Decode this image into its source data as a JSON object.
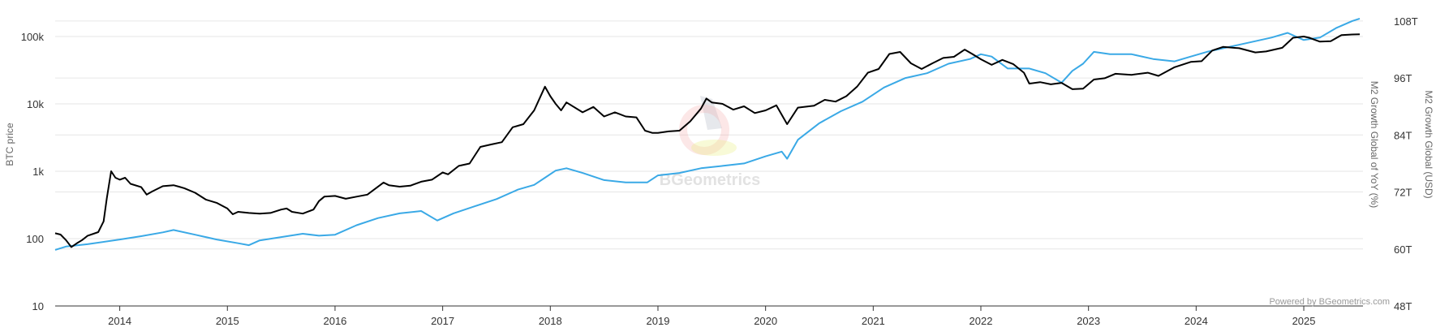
{
  "chart_data": {
    "type": "line",
    "title": "",
    "x_ticks": [
      "2014",
      "2015",
      "2016",
      "2017",
      "2018",
      "2019",
      "2020",
      "2021",
      "2022",
      "2023",
      "2024",
      "2025"
    ],
    "x_range": [
      2013.4,
      2025.55
    ],
    "y_left": {
      "label": "BTC price",
      "scale": "log",
      "range": [
        10,
        200000
      ],
      "ticks": [
        {
          "value": 10,
          "label": "10"
        },
        {
          "value": 100,
          "label": "100"
        },
        {
          "value": 1000,
          "label": "1k"
        },
        {
          "value": 10000,
          "label": "10k"
        },
        {
          "value": 100000,
          "label": "100k"
        }
      ]
    },
    "y_right_inner": {
      "label": "M2 Growth Global of YoY (%)"
    },
    "y_right": {
      "label": "M2 Growth Global (USD)",
      "scale": "linear",
      "range": [
        48,
        109
      ],
      "ticks": [
        {
          "value": 48,
          "label": "48T"
        },
        {
          "value": 60,
          "label": "60T"
        },
        {
          "value": 72,
          "label": "72T"
        },
        {
          "value": 84,
          "label": "84T"
        },
        {
          "value": 96,
          "label": "96T"
        },
        {
          "value": 108,
          "label": "108T"
        }
      ]
    },
    "grid": true,
    "legend": "none",
    "credit": "Powered by BGeometrics.com",
    "watermark": "BGeometrics",
    "series": [
      {
        "color": "#000000",
        "axis": "left",
        "points": [
          [
            2013.4,
            120
          ],
          [
            2013.45,
            115
          ],
          [
            2013.5,
            95
          ],
          [
            2013.55,
            75
          ],
          [
            2013.6,
            85
          ],
          [
            2013.65,
            95
          ],
          [
            2013.7,
            110
          ],
          [
            2013.8,
            125
          ],
          [
            2013.85,
            180
          ],
          [
            2013.88,
            400
          ],
          [
            2013.92,
            1000
          ],
          [
            2013.96,
            800
          ],
          [
            2014.0,
            750
          ],
          [
            2014.05,
            800
          ],
          [
            2014.1,
            650
          ],
          [
            2014.2,
            580
          ],
          [
            2014.25,
            450
          ],
          [
            2014.3,
            500
          ],
          [
            2014.4,
            600
          ],
          [
            2014.5,
            620
          ],
          [
            2014.55,
            590
          ],
          [
            2014.6,
            560
          ],
          [
            2014.7,
            480
          ],
          [
            2014.8,
            380
          ],
          [
            2014.9,
            340
          ],
          [
            2015.0,
            280
          ],
          [
            2015.05,
            230
          ],
          [
            2015.1,
            250
          ],
          [
            2015.2,
            240
          ],
          [
            2015.3,
            235
          ],
          [
            2015.4,
            240
          ],
          [
            2015.5,
            270
          ],
          [
            2015.55,
            280
          ],
          [
            2015.6,
            250
          ],
          [
            2015.7,
            235
          ],
          [
            2015.8,
            270
          ],
          [
            2015.85,
            360
          ],
          [
            2015.9,
            420
          ],
          [
            2016.0,
            430
          ],
          [
            2016.1,
            390
          ],
          [
            2016.2,
            420
          ],
          [
            2016.3,
            450
          ],
          [
            2016.45,
            680
          ],
          [
            2016.5,
            620
          ],
          [
            2016.6,
            590
          ],
          [
            2016.7,
            610
          ],
          [
            2016.8,
            700
          ],
          [
            2016.9,
            750
          ],
          [
            2017.0,
            960
          ],
          [
            2017.05,
            900
          ],
          [
            2017.15,
            1200
          ],
          [
            2017.25,
            1300
          ],
          [
            2017.35,
            2300
          ],
          [
            2017.45,
            2500
          ],
          [
            2017.55,
            2700
          ],
          [
            2017.65,
            4500
          ],
          [
            2017.75,
            5000
          ],
          [
            2017.85,
            8000
          ],
          [
            2017.95,
            18000
          ],
          [
            2018.0,
            13000
          ],
          [
            2018.05,
            10000
          ],
          [
            2018.1,
            8000
          ],
          [
            2018.15,
            10500
          ],
          [
            2018.3,
            7500
          ],
          [
            2018.4,
            9000
          ],
          [
            2018.5,
            6500
          ],
          [
            2018.6,
            7500
          ],
          [
            2018.7,
            6500
          ],
          [
            2018.8,
            6300
          ],
          [
            2018.88,
            4000
          ],
          [
            2018.95,
            3700
          ],
          [
            2019.0,
            3700
          ],
          [
            2019.1,
            3900
          ],
          [
            2019.2,
            4000
          ],
          [
            2019.3,
            5500
          ],
          [
            2019.4,
            8500
          ],
          [
            2019.45,
            12000
          ],
          [
            2019.5,
            10500
          ],
          [
            2019.6,
            10000
          ],
          [
            2019.7,
            8200
          ],
          [
            2019.8,
            9200
          ],
          [
            2019.9,
            7300
          ],
          [
            2020.0,
            8000
          ],
          [
            2020.1,
            9500
          ],
          [
            2020.2,
            5000
          ],
          [
            2020.3,
            8800
          ],
          [
            2020.45,
            9400
          ],
          [
            2020.55,
            11500
          ],
          [
            2020.65,
            10800
          ],
          [
            2020.75,
            13000
          ],
          [
            2020.85,
            18000
          ],
          [
            2020.95,
            29000
          ],
          [
            2021.05,
            33000
          ],
          [
            2021.15,
            55000
          ],
          [
            2021.25,
            59000
          ],
          [
            2021.35,
            40000
          ],
          [
            2021.45,
            33000
          ],
          [
            2021.55,
            40000
          ],
          [
            2021.65,
            48000
          ],
          [
            2021.75,
            50000
          ],
          [
            2021.85,
            64000
          ],
          [
            2021.92,
            55000
          ],
          [
            2022.0,
            46000
          ],
          [
            2022.1,
            38000
          ],
          [
            2022.2,
            45000
          ],
          [
            2022.3,
            39000
          ],
          [
            2022.4,
            29000
          ],
          [
            2022.45,
            20000
          ],
          [
            2022.55,
            21000
          ],
          [
            2022.65,
            19500
          ],
          [
            2022.75,
            20500
          ],
          [
            2022.85,
            16500
          ],
          [
            2022.95,
            16800
          ],
          [
            2023.05,
            23000
          ],
          [
            2023.15,
            24000
          ],
          [
            2023.25,
            28000
          ],
          [
            2023.4,
            27000
          ],
          [
            2023.55,
            29000
          ],
          [
            2023.65,
            26000
          ],
          [
            2023.8,
            35000
          ],
          [
            2023.95,
            42000
          ],
          [
            2024.05,
            43000
          ],
          [
            2024.15,
            62000
          ],
          [
            2024.25,
            70000
          ],
          [
            2024.4,
            67000
          ],
          [
            2024.55,
            58000
          ],
          [
            2024.65,
            60000
          ],
          [
            2024.8,
            68000
          ],
          [
            2024.9,
            96000
          ],
          [
            2025.0,
            100000
          ],
          [
            2025.05,
            96000
          ],
          [
            2025.15,
            84000
          ],
          [
            2025.25,
            85000
          ],
          [
            2025.35,
            105000
          ],
          [
            2025.45,
            107000
          ],
          [
            2025.52,
            108000
          ]
        ]
      },
      {
        "color": "#3aa9e6",
        "axis": "right",
        "points": [
          [
            2013.4,
            59.8
          ],
          [
            2013.5,
            60.5
          ],
          [
            2013.7,
            61.0
          ],
          [
            2014.0,
            62.0
          ],
          [
            2014.2,
            62.7
          ],
          [
            2014.4,
            63.5
          ],
          [
            2014.5,
            64.0
          ],
          [
            2014.7,
            63.0
          ],
          [
            2014.9,
            62.0
          ],
          [
            2015.1,
            61.2
          ],
          [
            2015.2,
            60.8
          ],
          [
            2015.3,
            61.8
          ],
          [
            2015.5,
            62.5
          ],
          [
            2015.7,
            63.2
          ],
          [
            2015.85,
            62.8
          ],
          [
            2016.0,
            63.0
          ],
          [
            2016.2,
            65.0
          ],
          [
            2016.4,
            66.5
          ],
          [
            2016.6,
            67.5
          ],
          [
            2016.8,
            68.0
          ],
          [
            2016.95,
            66.0
          ],
          [
            2017.1,
            67.5
          ],
          [
            2017.3,
            69.0
          ],
          [
            2017.5,
            70.5
          ],
          [
            2017.7,
            72.5
          ],
          [
            2017.85,
            73.5
          ],
          [
            2017.95,
            75.0
          ],
          [
            2018.05,
            76.5
          ],
          [
            2018.15,
            77.0
          ],
          [
            2018.3,
            76.0
          ],
          [
            2018.5,
            74.5
          ],
          [
            2018.7,
            74.0
          ],
          [
            2018.9,
            74.0
          ],
          [
            2019.0,
            75.5
          ],
          [
            2019.2,
            76.0
          ],
          [
            2019.4,
            77.0
          ],
          [
            2019.6,
            77.5
          ],
          [
            2019.8,
            78.0
          ],
          [
            2020.0,
            79.5
          ],
          [
            2020.15,
            80.5
          ],
          [
            2020.2,
            79.0
          ],
          [
            2020.3,
            83.0
          ],
          [
            2020.5,
            86.5
          ],
          [
            2020.7,
            89.0
          ],
          [
            2020.9,
            91.0
          ],
          [
            2021.1,
            94.0
          ],
          [
            2021.3,
            96.0
          ],
          [
            2021.5,
            97.0
          ],
          [
            2021.7,
            99.0
          ],
          [
            2021.9,
            100.0
          ],
          [
            2022.0,
            101.0
          ],
          [
            2022.1,
            100.5
          ],
          [
            2022.25,
            98.0
          ],
          [
            2022.45,
            98.0
          ],
          [
            2022.6,
            97.0
          ],
          [
            2022.75,
            95.0
          ],
          [
            2022.85,
            97.5
          ],
          [
            2022.95,
            99.0
          ],
          [
            2023.05,
            101.5
          ],
          [
            2023.2,
            101.0
          ],
          [
            2023.4,
            101.0
          ],
          [
            2023.6,
            100.0
          ],
          [
            2023.8,
            99.5
          ],
          [
            2023.95,
            100.5
          ],
          [
            2024.1,
            101.5
          ],
          [
            2024.3,
            102.5
          ],
          [
            2024.5,
            103.5
          ],
          [
            2024.7,
            104.5
          ],
          [
            2024.85,
            105.5
          ],
          [
            2025.0,
            104.0
          ],
          [
            2025.15,
            104.5
          ],
          [
            2025.3,
            106.5
          ],
          [
            2025.45,
            108.0
          ],
          [
            2025.52,
            108.5
          ]
        ]
      }
    ]
  }
}
